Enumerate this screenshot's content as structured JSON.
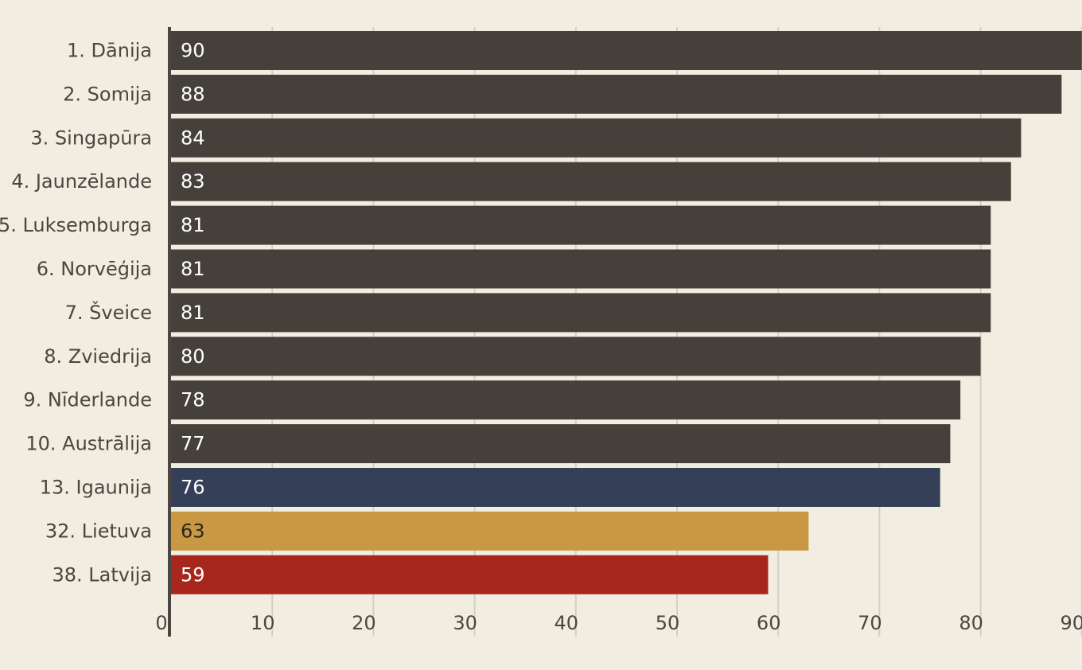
{
  "chart_data": {
    "type": "bar",
    "orientation": "horizontal",
    "categories": [
      "1. Dānija",
      "2. Somija",
      "3. Singapūra",
      "4. Jaunzēlande",
      "5. Luksemburga",
      "6. Norvēģija",
      "7. Šveice",
      "8. Zviedrija",
      "9. Nīderlande",
      "10. Austrālija",
      "13. Igaunija",
      "32. Lietuva",
      "38. Latvija"
    ],
    "values": [
      90,
      88,
      84,
      83,
      81,
      81,
      81,
      80,
      78,
      77,
      76,
      63,
      59
    ],
    "value_labels": [
      "90",
      "88",
      "84",
      "83",
      "81",
      "81",
      "81",
      "80",
      "78",
      "77",
      "76",
      "63",
      "59"
    ],
    "bar_colors": [
      "#45413a",
      "#45413a",
      "#45413a",
      "#45413a",
      "#45413a",
      "#45413a",
      "#45413a",
      "#45413a",
      "#45413a",
      "#45413a",
      "#353f58",
      "#c99842",
      "#a8271d"
    ],
    "label_colors": [
      "#ffffff",
      "#ffffff",
      "#ffffff",
      "#ffffff",
      "#ffffff",
      "#ffffff",
      "#ffffff",
      "#ffffff",
      "#ffffff",
      "#ffffff",
      "#ffffff",
      "#2a2620",
      "#ffffff"
    ],
    "xticks": [
      0,
      10,
      20,
      30,
      40,
      50,
      60,
      70,
      80,
      90
    ],
    "xtick_labels": [
      "0",
      "10",
      "20",
      "30",
      "40",
      "50",
      "60",
      "70",
      "80",
      "90"
    ],
    "xlim": [
      0,
      90
    ],
    "title": "",
    "xlabel": "",
    "ylabel": "",
    "grid": true,
    "legend": "none"
  }
}
